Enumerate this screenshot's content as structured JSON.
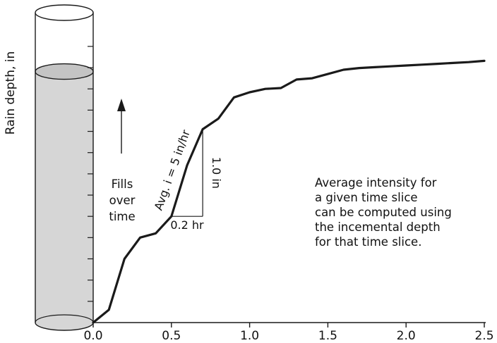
{
  "chart_data": {
    "type": "line",
    "ylabel": "Rain depth, in",
    "xlabel": "",
    "xlim": [
      0,
      2.5
    ],
    "x_ticks": [
      "0.0",
      "0.5",
      "1.0",
      "1.5",
      "2.0",
      "2.5"
    ],
    "x_tick_values": [
      0.0,
      0.5,
      1.0,
      1.5,
      2.0,
      2.5
    ],
    "ylim": [
      0,
      6.1
    ],
    "y_minor_tick_step": 0.5,
    "grid": false,
    "series": [
      {
        "x": [
          0.0,
          0.1,
          0.2,
          0.3,
          0.4,
          0.5,
          0.6,
          0.7,
          0.8,
          0.9,
          1.0,
          1.1,
          1.2,
          1.3,
          1.4,
          1.5,
          1.6,
          1.7,
          1.8,
          1.9,
          2.0,
          2.1,
          2.2,
          2.3,
          2.4,
          2.5
        ],
        "y": [
          0.0,
          0.3,
          1.5,
          2.0,
          2.1,
          2.5,
          3.7,
          4.55,
          4.8,
          5.3,
          5.42,
          5.5,
          5.52,
          5.72,
          5.75,
          5.85,
          5.95,
          5.99,
          6.01,
          6.03,
          6.05,
          6.07,
          6.09,
          6.11,
          6.13,
          6.16
        ],
        "color": "#1a1a1a"
      }
    ],
    "annotations": {
      "slope_label": "Avg. i = 5 in/hr",
      "run_label": "0.2 hr",
      "rise_label": "1.0 in",
      "run_value": 0.2,
      "rise_value": 1.0,
      "note_lines": [
        "Average intensity for",
        "a given time slice",
        "can be computed using",
        "the incemental depth",
        "for that time slice."
      ]
    }
  },
  "gauge": {
    "fill_fraction": 0.81,
    "label_lines": [
      "Fills",
      "over",
      "time"
    ],
    "fill_color": "#d6d6d6",
    "arrow_icon": "up-arrow-icon"
  },
  "colors": {
    "line": "#1a1a1a",
    "axis": "#1a1a1a"
  }
}
